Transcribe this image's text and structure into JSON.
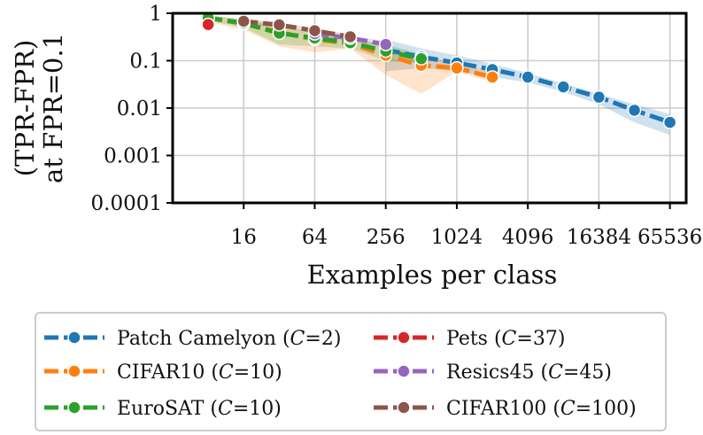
{
  "chart_data": {
    "type": "line",
    "title": "",
    "xlabel": "Examples per class",
    "ylabel_lines": [
      "(TPR-FPR)",
      "at FPR=0.1"
    ],
    "xscale": "log2",
    "yscale": "log10",
    "xlim": [
      4,
      90000
    ],
    "ylim": [
      0.0001,
      1
    ],
    "x_ticks": [
      16,
      64,
      256,
      1024,
      4096,
      16384,
      65536
    ],
    "x_tick_labels": [
      "16",
      "64",
      "256",
      "1024",
      "4096",
      "16384",
      "65536"
    ],
    "y_ticks": [
      0.0001,
      0.001,
      0.01,
      0.1,
      1
    ],
    "y_tick_labels": [
      "0.0001",
      "0.001",
      "0.01",
      "0.1",
      "1"
    ],
    "grid": true,
    "legend_position": "bottom",
    "series": [
      {
        "name": "Patch Camelyon",
        "c_value": "2",
        "color": "#1f77b4",
        "x": [
          256,
          512,
          1024,
          2048,
          4096,
          8192,
          16384,
          32768,
          65536
        ],
        "y": [
          0.17,
          0.12,
          0.09,
          0.065,
          0.045,
          0.028,
          0.017,
          0.009,
          0.005
        ],
        "band_low": [
          0.06,
          0.07,
          0.06,
          0.045,
          0.035,
          0.022,
          0.012,
          0.005,
          0.0027
        ],
        "band_high": [
          0.28,
          0.18,
          0.13,
          0.085,
          0.055,
          0.033,
          0.02,
          0.012,
          0.0075
        ]
      },
      {
        "name": "CIFAR10",
        "c_value": "10",
        "color": "#ff7f0e",
        "x": [
          8,
          16,
          32,
          64,
          128,
          256,
          512,
          1024,
          2048
        ],
        "y": [
          0.8,
          0.6,
          0.4,
          0.28,
          0.23,
          0.13,
          0.08,
          0.07,
          0.045
        ],
        "band_low": [
          0.65,
          0.45,
          0.2,
          0.15,
          0.18,
          0.05,
          0.02,
          0.06,
          0.035
        ],
        "band_high": [
          0.9,
          0.75,
          0.55,
          0.38,
          0.3,
          0.2,
          0.12,
          0.09,
          0.055
        ]
      },
      {
        "name": "EuroSAT",
        "c_value": "10",
        "color": "#2ca02c",
        "x": [
          8,
          16,
          32,
          64,
          128,
          256,
          512
        ],
        "y": [
          0.8,
          0.62,
          0.38,
          0.3,
          0.24,
          0.16,
          0.11
        ],
        "band_low": [
          0.7,
          0.5,
          0.22,
          0.2,
          0.18,
          0.1,
          0.09
        ],
        "band_high": [
          0.9,
          0.75,
          0.5,
          0.4,
          0.3,
          0.22,
          0.14
        ]
      },
      {
        "name": "Pets",
        "c_value": "37",
        "color": "#d62728",
        "x": [
          8
        ],
        "y": [
          0.58
        ],
        "band_low": [
          0.5
        ],
        "band_high": [
          0.66
        ]
      },
      {
        "name": "Resics45",
        "c_value": "45",
        "color": "#9467bd",
        "x": [
          64,
          128,
          256
        ],
        "y": [
          0.37,
          0.3,
          0.22
        ],
        "band_low": [
          0.33,
          0.27,
          0.19
        ],
        "band_high": [
          0.41,
          0.33,
          0.26
        ]
      },
      {
        "name": "CIFAR100",
        "c_value": "100",
        "color": "#8c564b",
        "x": [
          16,
          32,
          64,
          128
        ],
        "y": [
          0.68,
          0.57,
          0.43,
          0.32
        ],
        "band_low": [
          0.6,
          0.5,
          0.38,
          0.28
        ],
        "band_high": [
          0.76,
          0.64,
          0.48,
          0.36
        ]
      }
    ]
  },
  "legend": {
    "c_symbol": "C",
    "equals": "=",
    "close": ")",
    "items": [
      {
        "label": "Patch Camelyon (",
        "c": "2"
      },
      {
        "label": "CIFAR10 (",
        "c": "10"
      },
      {
        "label": "EuroSAT (",
        "c": "10"
      },
      {
        "label": "Pets (",
        "c": "37"
      },
      {
        "label": "Resics45 (",
        "c": "45"
      },
      {
        "label": "CIFAR100 (",
        "c": "100"
      }
    ]
  }
}
